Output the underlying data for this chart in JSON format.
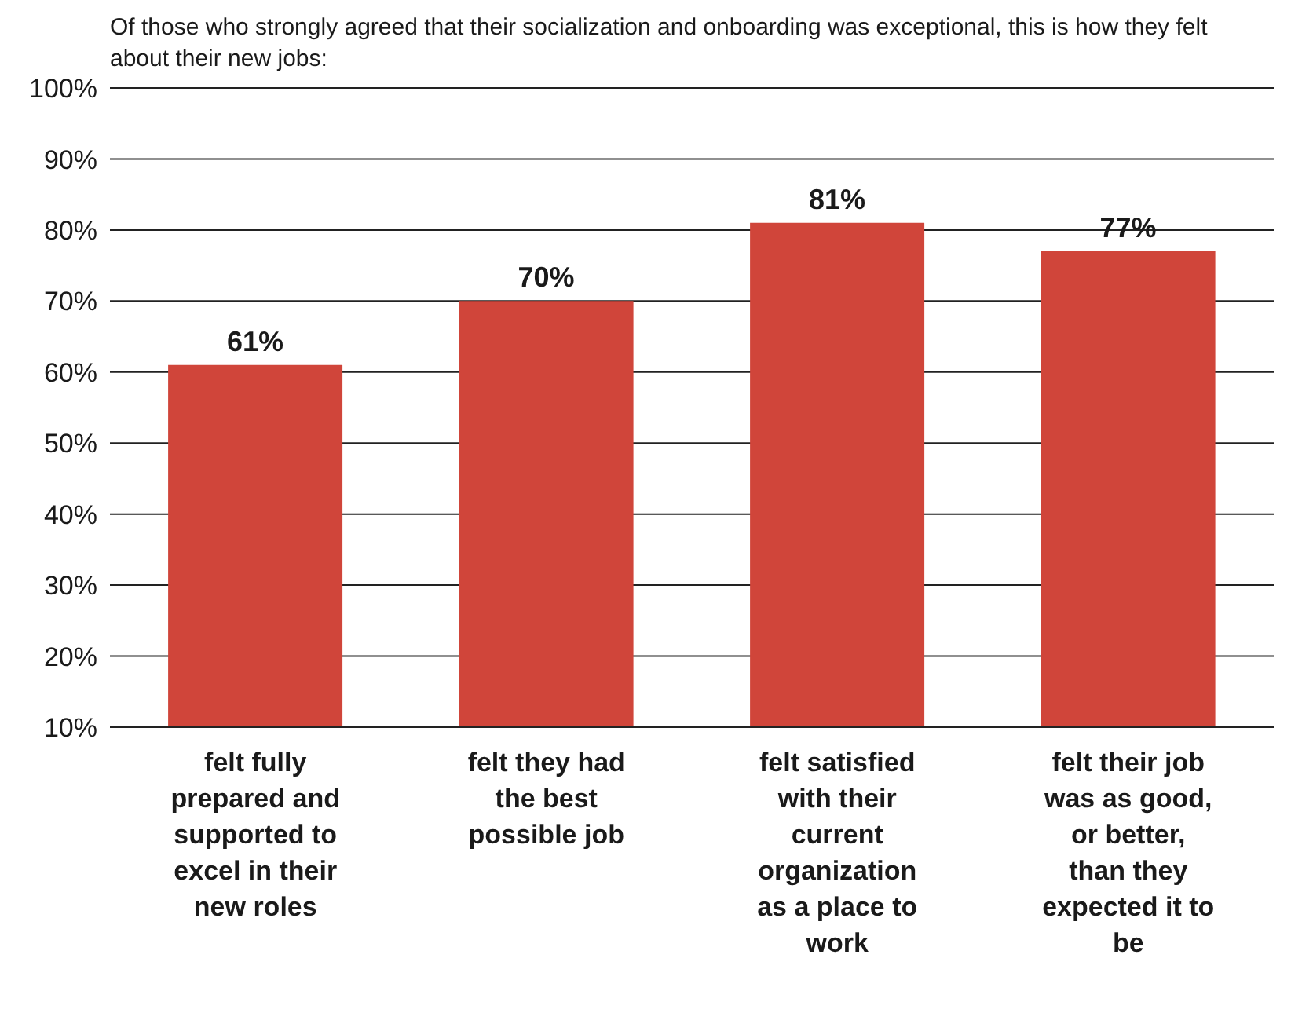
{
  "chart_data": {
    "type": "bar",
    "title": "Of those who strongly agreed that their socialization and onboarding was exceptional, this is how they felt about their new jobs:",
    "categories": [
      "felt fully prepared and supported to excel in their new roles",
      "felt they had the best possible job",
      "felt satisfied with their current organization as a place to work",
      "felt their job was as good, or better, than they expected it to be"
    ],
    "values": [
      61,
      70,
      81,
      77
    ],
    "value_labels": [
      "61%",
      "70%",
      "81%",
      "77%"
    ],
    "color": "#d0453a",
    "ylim": [
      10,
      100
    ],
    "yticks": [
      {
        "value": 10,
        "label": "10%"
      },
      {
        "value": 20,
        "label": "20%"
      },
      {
        "value": 30,
        "label": "30%"
      },
      {
        "value": 40,
        "label": "40%"
      },
      {
        "value": 50,
        "label": "50%"
      },
      {
        "value": 60,
        "label": "60%"
      },
      {
        "value": 70,
        "label": "70%"
      },
      {
        "value": 80,
        "label": "80%"
      },
      {
        "value": 90,
        "label": "90%"
      },
      {
        "value": 100,
        "label": "100%"
      }
    ],
    "grid": "y"
  }
}
